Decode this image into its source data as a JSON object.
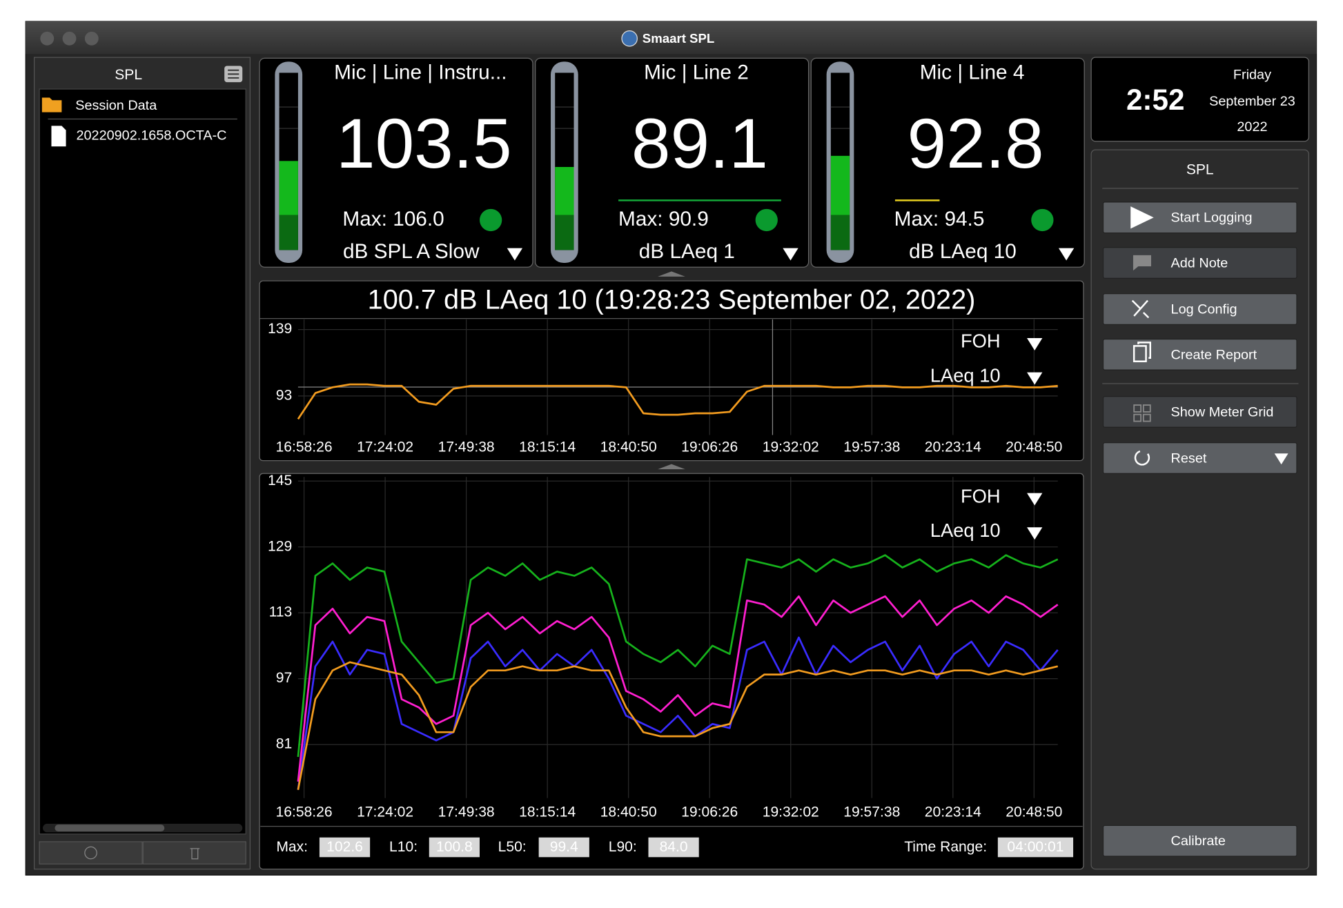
{
  "window": {
    "title": "Smaart SPL"
  },
  "sidebar": {
    "title": "SPL",
    "items": [
      "Session Data",
      "20220902.1658.OCTA-C"
    ]
  },
  "meters": [
    {
      "label": "Mic | Line | Instru...",
      "value": 103.5,
      "max": "Max: 106.0",
      "measure": "dB SPL A Slow",
      "color": "#e8141c"
    },
    {
      "label": "Mic | Line 2",
      "value": 89.1,
      "max": "Max: 90.9",
      "measure": "dB LAeq 1",
      "color": "#14a83a"
    },
    {
      "label": "Mic | Line 4",
      "value": 92.8,
      "max": "Max: 94.5",
      "measure": "dB LAeq 10",
      "color": "#14a83a"
    }
  ],
  "clock": {
    "time": "2:52",
    "day": "Friday",
    "date": "September 23",
    "year": "2022"
  },
  "panel": {
    "title": "SPL",
    "buttons": [
      "Start Logging",
      "Add Note",
      "Log Config",
      "Create Report",
      "Show Meter Grid",
      "Reset",
      "Calibrate"
    ]
  },
  "chart_data": [
    {
      "type": "line",
      "title": "100.7 dB LAeq 10 (19:28:23 September 02, 2022)",
      "selectors": [
        "FOH",
        "LAeq 10"
      ],
      "x_labels": [
        "16:58:26",
        "17:24:02",
        "17:49:38",
        "18:15:14",
        "18:40:50",
        "19:06:26",
        "19:32:02",
        "19:57:38",
        "20:23:14",
        "20:48:50"
      ],
      "ylim": [
        66,
        146
      ],
      "yticks": [
        93,
        139
      ],
      "grid": true,
      "series": [
        {
          "color": "#f39c1f",
          "values": [
            77,
            95,
            99,
            101,
            101,
            100,
            100,
            89,
            87,
            98,
            100,
            100,
            100,
            100,
            100,
            100,
            100,
            100,
            100,
            99,
            81,
            80,
            80,
            81,
            81,
            82,
            96,
            100,
            100,
            100,
            100,
            99,
            99,
            100,
            100,
            99,
            99,
            100,
            100,
            99,
            99,
            100,
            99,
            99,
            100
          ]
        }
      ]
    },
    {
      "type": "line",
      "selectors": [
        "FOH",
        "LAeq 10"
      ],
      "x_labels": [
        "16:58:26",
        "17:24:02",
        "17:49:38",
        "18:15:14",
        "18:40:50",
        "19:06:26",
        "19:32:02",
        "19:57:38",
        "20:23:14",
        "20:48:50"
      ],
      "ylim": [
        68,
        146
      ],
      "yticks": [
        81,
        97,
        113,
        129,
        145
      ],
      "grid": true,
      "series": [
        {
          "color": "#16b21c",
          "values": [
            78,
            122,
            125,
            121,
            124,
            123,
            106,
            101,
            96,
            97,
            121,
            124,
            122,
            125,
            121,
            123,
            122,
            124,
            120,
            106,
            103,
            101,
            104,
            100,
            105,
            103,
            126,
            125,
            124,
            126,
            123,
            126,
            124,
            125,
            127,
            124,
            126,
            123,
            125,
            126,
            124,
            127,
            125,
            124,
            126
          ]
        },
        {
          "color": "#3a2cff",
          "values": [
            70,
            100,
            106,
            98,
            104,
            103,
            86,
            84,
            82,
            84,
            102,
            106,
            100,
            104,
            99,
            103,
            100,
            104,
            97,
            88,
            86,
            84,
            88,
            83,
            86,
            85,
            104,
            106,
            98,
            107,
            98,
            105,
            101,
            104,
            106,
            99,
            105,
            97,
            103,
            106,
            100,
            106,
            104,
            99,
            104
          ]
        },
        {
          "color": "#ff1fd0",
          "values": [
            72,
            110,
            114,
            108,
            112,
            111,
            92,
            90,
            86,
            88,
            110,
            113,
            109,
            112,
            108,
            111,
            109,
            112,
            107,
            94,
            92,
            89,
            93,
            88,
            91,
            90,
            116,
            115,
            112,
            117,
            110,
            116,
            113,
            115,
            117,
            112,
            116,
            110,
            114,
            116,
            113,
            117,
            115,
            112,
            115
          ]
        },
        {
          "color": "#f39c1f",
          "values": [
            70,
            92,
            99,
            101,
            100,
            99,
            98,
            93,
            84,
            84,
            95,
            99,
            99,
            100,
            99,
            99,
            100,
            99,
            99,
            90,
            84,
            83,
            83,
            83,
            85,
            86,
            95,
            98,
            98,
            99,
            98,
            99,
            98,
            99,
            99,
            98,
            99,
            98,
            99,
            99,
            98,
            99,
            98,
            99,
            100
          ]
        }
      ]
    }
  ],
  "stats": [
    {
      "label": "Max:",
      "value": "102.6"
    },
    {
      "label": "L10:",
      "value": "100.8"
    },
    {
      "label": "L50:",
      "value": "99.4"
    },
    {
      "label": "L90:",
      "value": "84.0"
    },
    {
      "label": "Time Range:",
      "value": "04:00:01"
    }
  ]
}
